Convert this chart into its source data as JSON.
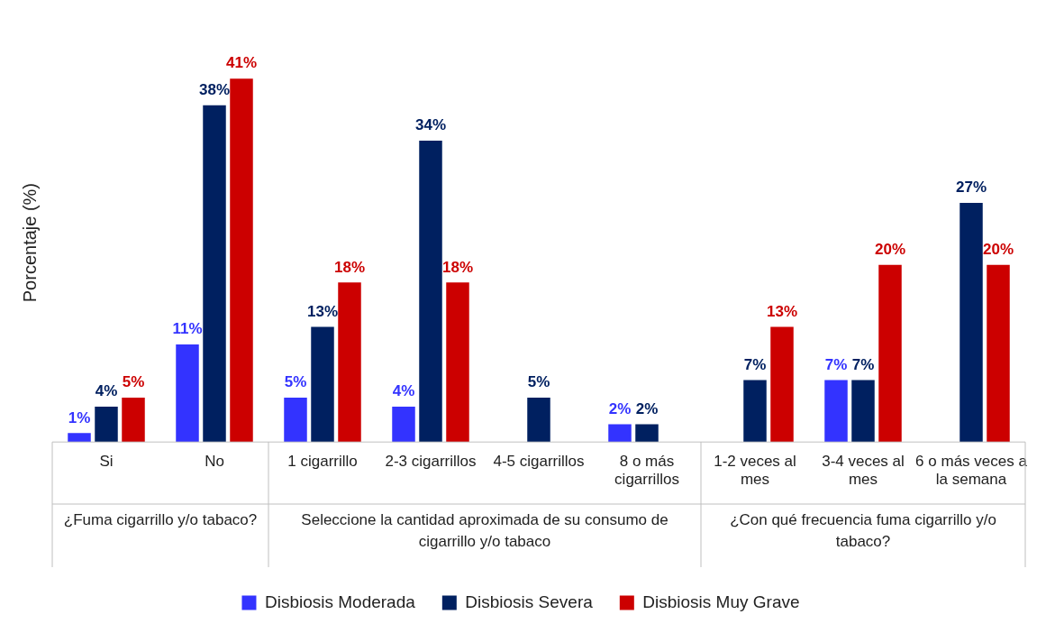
{
  "chart_data": {
    "type": "bar",
    "ylabel": "Porcentaje (%)",
    "categories": [
      "Si",
      "No",
      "1 cigarrillo",
      "2-3 cigarrillos",
      "4-5 cigarrillos",
      "8 o más cigarrillos",
      "1-2 veces al mes",
      "3-4 veces al mes",
      "6 o más veces a la semana"
    ],
    "series": [
      {
        "name": "Disbiosis Moderada",
        "color": "#3333ff",
        "values": [
          1,
          11,
          5,
          4,
          null,
          2,
          null,
          7,
          null
        ],
        "value_labels": [
          "1%",
          "11%",
          "5%",
          "4%",
          null,
          "2%",
          null,
          "7%",
          null
        ]
      },
      {
        "name": "Disbiosis Severa",
        "color": "#002060",
        "values": [
          4,
          38,
          13,
          34,
          5,
          2,
          7,
          7,
          27
        ],
        "value_labels": [
          "4%",
          "38%",
          "13%",
          "34%",
          "5%",
          "2%",
          "7%",
          "7%",
          "27%"
        ]
      },
      {
        "name": "Disbiosis Muy Grave",
        "color": "#cc0000",
        "values": [
          5,
          41,
          18,
          18,
          null,
          null,
          13,
          20,
          20
        ],
        "value_labels": [
          "5%",
          "41%",
          "18%",
          "18%",
          null,
          null,
          "13%",
          "20%",
          "20%"
        ]
      }
    ],
    "annotations": [
      "¿Fuma cigarrillo y/o tabaco?",
      "Seleccione la cantidad aproximada de su consumo de cigarrillo y/o tabaco",
      "¿Con qué frecuencia fuma cigarrillo y/o tabaco?"
    ],
    "grid": false,
    "legend": "bottom"
  }
}
